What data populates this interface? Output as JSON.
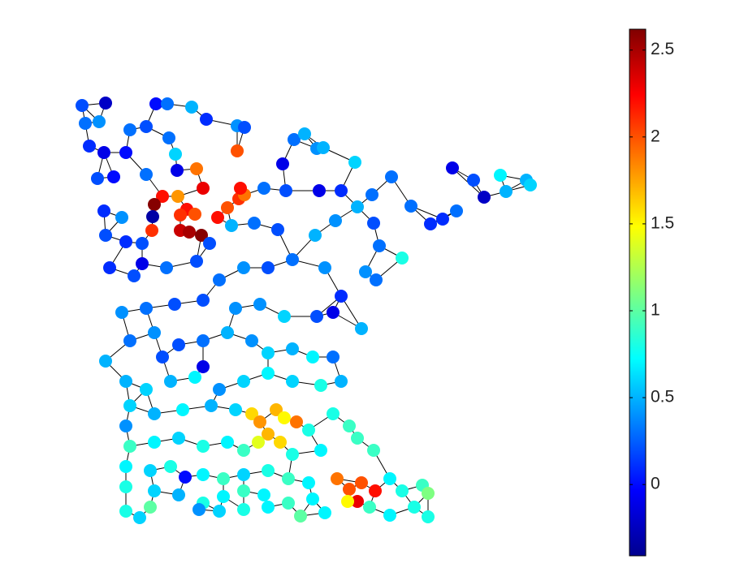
{
  "chart_data": {
    "type": "scatter",
    "colormap": "jet",
    "clim": [
      -0.41,
      2.62
    ],
    "colorbar_ticks": [
      0,
      0.5,
      1,
      1.5,
      2,
      2.5
    ],
    "values": [
      0.2,
      -0.2,
      0.0,
      0.3,
      0.5,
      0.1,
      0.4,
      0.2,
      0.3,
      0.4,
      0.3,
      0.2,
      0.3,
      0.1,
      -0.1,
      0.0,
      0.6,
      2.0,
      0.2,
      0.0,
      0.3,
      -0.1,
      1.9,
      2.3,
      2.2,
      1.8,
      2.6,
      2.2,
      2.0,
      2.1,
      2.2,
      2.0,
      2.1,
      1.9,
      2.2,
      2.4,
      2.5,
      2.6,
      2.1,
      0.1,
      0.4,
      -0.3,
      0.2,
      0.1,
      0.2,
      0.5,
      0.2,
      -0.1,
      0.3,
      0.5,
      0.4,
      0.5,
      0.6,
      0.3,
      -0.1,
      0.2,
      0.7,
      0.5,
      0.6,
      0.5,
      -0.2,
      0.3,
      0.1,
      0.1,
      0.3,
      0.3,
      0.5,
      0.1,
      -0.1,
      0.2,
      0.3,
      0.3,
      0.2,
      0.5,
      0.4,
      0.2,
      0.3,
      0.8,
      0.4,
      0.3,
      0.1,
      0.2,
      -0.1,
      0.3,
      0.2,
      0.3,
      0.4,
      0.2,
      0.3,
      0.4,
      0.1,
      0.5,
      0.4,
      0.3,
      0.2,
      0.2,
      0.4,
      0.4,
      0.6,
      0.2,
      -0.1,
      0.5,
      0.3,
      0.4,
      0.2,
      0.3,
      0.5,
      0.4,
      0.6,
      0.5,
      0.7,
      0.3,
      -0.1,
      0.2,
      0.5,
      0.6,
      0.5,
      0.7,
      0.4,
      0.6,
      0.7,
      0.6,
      0.8,
      0.5,
      0.6,
      0.5,
      0.7,
      0.5,
      0.6,
      1.6,
      1.8,
      1.7,
      1.5,
      1.9,
      1.7,
      1.6,
      1.4,
      0.8,
      0.8,
      0.9,
      0.4,
      0.9,
      0.7,
      0.6,
      0.8,
      0.7,
      0.9,
      0.8,
      0.7,
      0.9,
      0.9,
      0.7,
      0.6,
      0.8,
      0.0,
      0.7,
      0.9,
      0.6,
      0.8,
      0.9,
      0.7,
      1.9,
      2.0,
      2.0,
      2.2,
      2.3,
      1.5,
      0.7,
      0.8,
      0.9,
      1.1,
      0.8,
      0.6,
      0.5,
      0.8,
      0.7,
      0.9,
      0.7,
      0.9,
      0.7,
      0.8,
      0.6,
      1.0,
      0.4,
      0.6,
      0.8,
      0.7,
      1.0,
      0.7,
      0.9,
      0.7,
      0.8,
      0.8
    ]
  }
}
